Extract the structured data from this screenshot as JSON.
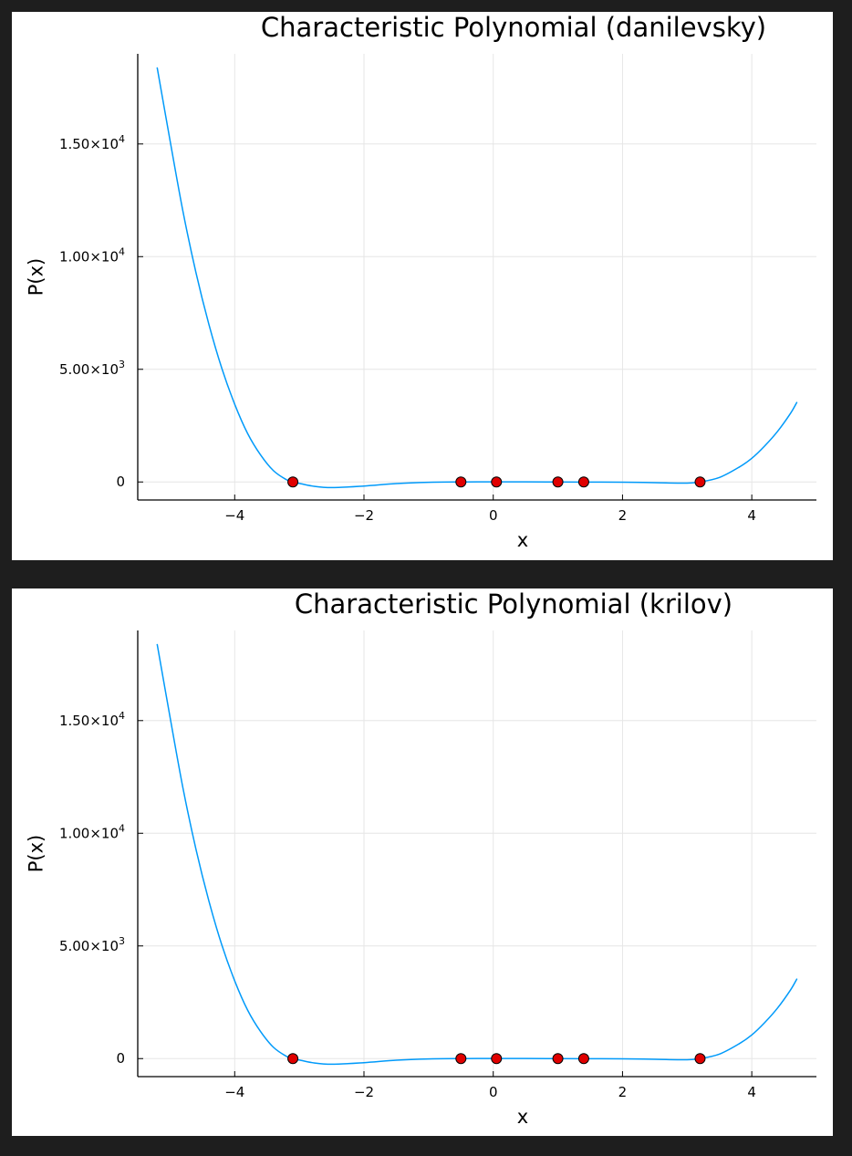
{
  "colors": {
    "line": "#009AFA",
    "marker": "#E00000",
    "background": "#1E1E1E",
    "panel": "#FFFFFF"
  },
  "chart_data": [
    {
      "type": "line",
      "title": "Characteristic Polynomial (danilevsky)",
      "xlabel": "x",
      "ylabel": "P(x)",
      "xlim": [
        -5.5,
        5.0
      ],
      "ylim": [
        -800,
        19000
      ],
      "grid": true,
      "legend": "none",
      "x_ticks": [
        {
          "value": -4,
          "label": "−4"
        },
        {
          "value": -2,
          "label": "−2"
        },
        {
          "value": 0,
          "label": "0"
        },
        {
          "value": 2,
          "label": "2"
        },
        {
          "value": 4,
          "label": "4"
        }
      ],
      "y_ticks": [
        {
          "value": 0,
          "mantissa": "0",
          "exp": ""
        },
        {
          "value": 5000,
          "mantissa": "5.00×10",
          "exp": "3"
        },
        {
          "value": 10000,
          "mantissa": "1.00×10",
          "exp": "4"
        },
        {
          "value": 15000,
          "mantissa": "1.50×10",
          "exp": "4"
        }
      ],
      "series": [
        {
          "kind": "line",
          "x": [
            -5.2,
            -5.0,
            -4.8,
            -4.6,
            -4.4,
            -4.2,
            -4.0,
            -3.8,
            -3.6,
            -3.4,
            -3.2,
            -3.1,
            -3.0,
            -2.8,
            -2.5,
            -2.0,
            -1.5,
            -1.0,
            -0.5,
            0.0,
            0.5,
            1.0,
            1.5,
            2.0,
            2.5,
            3.0,
            3.2,
            3.5,
            3.8,
            4.0,
            4.2,
            4.4,
            4.6,
            4.7
          ],
          "y": [
            18400,
            15150,
            12000,
            9300,
            7000,
            5050,
            3450,
            2150,
            1200,
            500,
            100,
            0,
            -60,
            -180,
            -250,
            -180,
            -70,
            -15,
            0,
            5,
            5,
            0,
            -5,
            -10,
            -30,
            -50,
            0,
            200,
            650,
            1050,
            1600,
            2250,
            3050,
            3550
          ]
        },
        {
          "kind": "scatter",
          "name": "roots",
          "x": [
            -3.1,
            -0.5,
            0.05,
            1.0,
            1.4,
            3.2
          ],
          "y": [
            0,
            0,
            0,
            0,
            0,
            0
          ]
        }
      ]
    },
    {
      "type": "line",
      "title": "Characteristic Polynomial (krilov)",
      "xlabel": "x",
      "ylabel": "P(x)",
      "xlim": [
        -5.5,
        5.0
      ],
      "ylim": [
        -800,
        19000
      ],
      "grid": true,
      "legend": "none",
      "x_ticks": [
        {
          "value": -4,
          "label": "−4"
        },
        {
          "value": -2,
          "label": "−2"
        },
        {
          "value": 0,
          "label": "0"
        },
        {
          "value": 2,
          "label": "2"
        },
        {
          "value": 4,
          "label": "4"
        }
      ],
      "y_ticks": [
        {
          "value": 0,
          "mantissa": "0",
          "exp": ""
        },
        {
          "value": 5000,
          "mantissa": "5.00×10",
          "exp": "3"
        },
        {
          "value": 10000,
          "mantissa": "1.00×10",
          "exp": "4"
        },
        {
          "value": 15000,
          "mantissa": "1.50×10",
          "exp": "4"
        }
      ],
      "series": [
        {
          "kind": "line",
          "x": [
            -5.2,
            -5.0,
            -4.8,
            -4.6,
            -4.4,
            -4.2,
            -4.0,
            -3.8,
            -3.6,
            -3.4,
            -3.2,
            -3.1,
            -3.0,
            -2.8,
            -2.5,
            -2.0,
            -1.5,
            -1.0,
            -0.5,
            0.0,
            0.5,
            1.0,
            1.5,
            2.0,
            2.5,
            3.0,
            3.2,
            3.5,
            3.8,
            4.0,
            4.2,
            4.4,
            4.6,
            4.7
          ],
          "y": [
            18400,
            15150,
            12000,
            9300,
            7000,
            5050,
            3450,
            2150,
            1200,
            500,
            100,
            0,
            -60,
            -180,
            -250,
            -180,
            -70,
            -15,
            0,
            5,
            5,
            0,
            -5,
            -10,
            -30,
            -50,
            0,
            200,
            650,
            1050,
            1600,
            2250,
            3050,
            3550
          ]
        },
        {
          "kind": "scatter",
          "name": "roots",
          "x": [
            -3.1,
            -0.5,
            0.05,
            1.0,
            1.4,
            3.2
          ],
          "y": [
            0,
            0,
            0,
            0,
            0,
            0
          ]
        }
      ]
    }
  ]
}
